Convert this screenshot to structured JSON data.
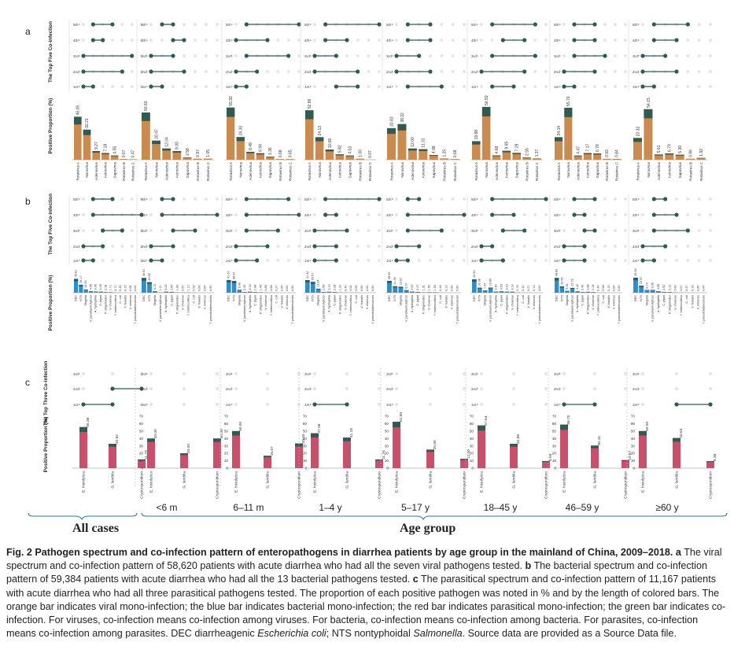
{
  "panels": [
    {
      "letter": "a",
      "co_label": "The Top Five Co-infection",
      "bar_label": "Positive Proportion (%)"
    },
    {
      "letter": "b",
      "co_label": "The Top Five Co-infection",
      "bar_label": "Positive Proportion (%)"
    },
    {
      "letter": "c",
      "co_label": "The Top Three Co-infection",
      "bar_label": "Positive Proportion (%)"
    }
  ],
  "ranks5": [
    "5th",
    "4th",
    "3rd",
    "2nd",
    "1st"
  ],
  "ranks3": [
    "3rd",
    "2nd",
    "1st"
  ],
  "group_labels": {
    "all": "All cases",
    "age": "Age group"
  },
  "age_groups": [
    "<6 m",
    "6–11 m",
    "1–4 y",
    "5–17 y",
    "18–45 y",
    "46–59 y",
    "≥60 y"
  ],
  "colors": {
    "viral": "#c98b4f",
    "bacterial": "#2f8ec9",
    "parasitic": "#c8506a",
    "coinfection": "#2f5b55"
  },
  "chart_data": [
    {
      "type": "bar",
      "panel": "a",
      "categories": [
        "Rotavirus A",
        "Norovirus",
        "Adenovirus",
        "Astrovirus",
        "Sapovirus",
        "Rotavirus B",
        "Rotavirus C"
      ],
      "ylim": [
        0,
        70
      ],
      "series": [
        {
          "group": "All cases",
          "values": [
            46.05,
            32.21,
            9.27,
            7.18,
            4.55,
            0.67,
            0.47
          ]
        },
        {
          "group": "<6 m",
          "values": [
            50.6,
            20.47,
            12.04,
            9.3,
            2.58,
            0.97,
            1.05
          ]
        },
        {
          "group": "6–11 m",
          "values": [
            55.92,
            24.3,
            8.49,
            6.94,
            3.36,
            0.68,
            0.65
          ]
        },
        {
          "group": "1–4 y",
          "values": [
            52.99,
            24.13,
            10.9,
            5.82,
            4.53,
            1.0,
            0.07
          ]
        },
        {
          "group": "5–17 y",
          "values": [
            33.83,
            38.22,
            12.0,
            11.31,
            4.98,
            1.25,
            0.68
          ]
        },
        {
          "group": "18–45 y",
          "values": [
            19.88,
            56.59,
            4.68,
            9.65,
            7.29,
            2.55,
            1.37
          ]
        },
        {
          "group": "46–59 y",
          "values": [
            24.14,
            55.7,
            4.47,
            7.17,
            6.78,
            0.93,
            0.84
          ]
        },
        {
          "group": "≥60 y",
          "values": [
            23.32,
            54.15,
            5.61,
            6.79,
            5.3,
            0.96,
            1.92
          ]
        }
      ]
    },
    {
      "type": "bar",
      "panel": "b",
      "categories": [
        "DEC",
        "NTS",
        "Shigella",
        "V. parahaemolyticus",
        "A. hydrophila",
        "C. jejuni",
        "P. shigelloides",
        "V. cholerae",
        "Y. enterocolitica",
        "C. coli",
        "V. fluvialis",
        "V. mimicus",
        "Y. pseudotuberculosis"
      ],
      "ylim": [
        0,
        70
      ],
      "series": [
        {
          "group": "All cases",
          "values": [
            45.61,
            26.17,
            10.53,
            4.95,
            3.96,
            3.48,
            2.18,
            1.71,
            0.71,
            0.45,
            0.15,
            0.06,
            0.04
          ]
        },
        {
          "group": "<6 m",
          "values": [
            48.51,
            34.59,
            4.7,
            1.11,
            3.25,
            2.64,
            1.3,
            0.67,
            1.12,
            0.52,
            0.04,
            0.04,
            0.0
          ]
        },
        {
          "group": "6–11 m",
          "values": [
            41.67,
            38.67,
            9.4,
            2.4,
            3.19,
            2.08,
            1.49,
            0.86,
            0.58,
            0.27,
            0.04,
            0.04,
            0.0
          ]
        },
        {
          "group": "1–4 y",
          "values": [
            41.32,
            35.57,
            13.04,
            2.56,
            3.1,
            2.28,
            1.24,
            0.4,
            0.52,
            0.55,
            0.0,
            0.0,
            0.0
          ]
        },
        {
          "group": "5–17 y",
          "values": [
            38.95,
            21.35,
            19.61,
            8.37,
            3.57,
            2.47,
            1.31,
            1.6,
            1.53,
            0.48,
            0.1,
            0.0,
            0.0
          ]
        },
        {
          "group": "18–45 y",
          "values": [
            43.93,
            16.36,
            7.44,
            16.85,
            3.64,
            4.53,
            3.43,
            3.19,
            0.79,
            0.41,
            0.27,
            0.13,
            0.04
          ]
        },
        {
          "group": "46–59 y",
          "values": [
            48.82,
            20.95,
            5.92,
            15.79,
            4.42,
            2.4,
            2.98,
            2.19,
            0.4,
            0.58,
            0.19,
            0.04,
            0.0
          ]
        },
        {
          "group": "≥60 y",
          "values": [
            49.46,
            22.97,
            8.79,
            9.06,
            4.85,
            2.52,
            2.12,
            0.82,
            0.57,
            0.37,
            0.15,
            0.05,
            0.04
          ]
        }
      ]
    },
    {
      "type": "bar",
      "panel": "c",
      "categories": [
        "E. histolytica",
        "G. lamblia",
        "Cryptosporidium"
      ],
      "ylim": [
        0,
        70
      ],
      "ticks": [
        0,
        10,
        20,
        30,
        40,
        50,
        60,
        70
      ],
      "series": [
        {
          "group": "All cases",
          "values": [
            55.38,
            32.82,
            11.79
          ],
          "ticked": false
        },
        {
          "group": "<6 m",
          "values": [
            40.0,
            20.0,
            40.0
          ],
          "ticked": true
        },
        {
          "group": "6–11 m",
          "values": [
            50.0,
            16.67,
            33.33
          ],
          "ticked": true
        },
        {
          "group": "1–4 y",
          "values": [
            47.06,
            41.18,
            11.76
          ],
          "ticked": true
        },
        {
          "group": "5–17 y",
          "values": [
            62.5,
            25.0,
            12.5
          ],
          "ticked": true
        },
        {
          "group": "18–45 y",
          "values": [
            57.53,
            32.88,
            9.59
          ],
          "ticked": true
        },
        {
          "group": "46–59 y",
          "values": [
            58.7,
            30.43,
            10.87
          ],
          "ticked": true
        },
        {
          "group": "≥60 y",
          "values": [
            50.0,
            40.63,
            9.38
          ],
          "ticked": true
        }
      ]
    }
  ],
  "caption": {
    "title": "Fig. 2 Pathogen spectrum and co-infection pattern of enteropathogens in diarrhea patients by age group in the mainland of China, 2009–2018.",
    "a_letter": "a",
    "a_text": " The viral spectrum and co-infection pattern of 58,620 patients with acute diarrhea who had all the seven viral pathogens tested.",
    "b_letter": "b",
    "b_text": " The bacterial spectrum and co-infection pattern of 59,384 patients with acute diarrhea who had all the 13 bacterial pathogens tested.",
    "c_letter": "c",
    "c_text": " The parasitical spectrum and co-infection pattern of 11,167 patients with acute diarrhea who had all three parasitical pathogens tested. The proportion of each positive pathogen was noted in % and by the length of colored bars. The orange bar indicates viral mono-infection; the blue bar indicates bacterial mono-infection; the red bar indicates parasitical mono-infection; the green bar indicates co-infection. For viruses, co-infection means co-infection among viruses. For bacteria, co-infection means co-infection among bacteria. For parasites, co-infection means co-infection among parasites. DEC diarrheagenic ",
    "dec_name": "Escherichia coli",
    "mid": "; NTS nontyphoidal ",
    "nts_name": "Salmonella",
    "end": ". Source data are provided as a Source Data file."
  }
}
